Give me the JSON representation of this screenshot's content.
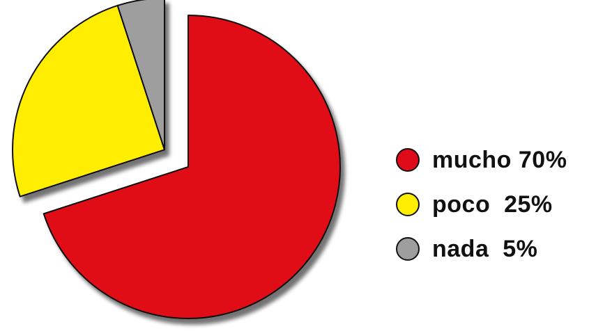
{
  "chart_data": {
    "type": "pie",
    "categories": [
      "mucho",
      "poco",
      "nada"
    ],
    "values": [
      70,
      25,
      5
    ],
    "colors": [
      "#e00b18",
      "#ffee00",
      "#9e9e9e"
    ],
    "exploded": [
      "poco",
      "nada"
    ],
    "legend_position": "right"
  },
  "legend": {
    "items": [
      {
        "label": "mucho 70%",
        "color": "#e00b18"
      },
      {
        "label": "poco  25%",
        "color": "#ffee00"
      },
      {
        "label": "nada  5%",
        "color": "#9e9e9e"
      }
    ]
  }
}
